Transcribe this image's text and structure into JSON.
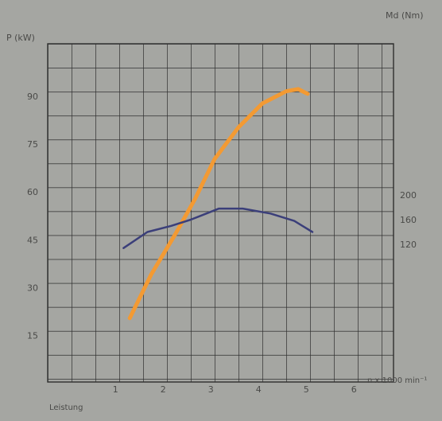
{
  "chart_data": {
    "type": "line",
    "ylabel": "P (kW)",
    "y2label": "Md (Nm)",
    "xlabel": "n x 1000 min⁻¹",
    "annotation": "Leistung",
    "xlim": [
      -0.42,
      6.83
    ],
    "xticks": [
      1,
      2,
      3,
      4,
      5,
      6
    ],
    "ylim": [
      0.7,
      106.7
    ],
    "yticks": [
      15,
      30,
      45,
      60,
      75,
      90
    ],
    "y2lim": [
      -102,
      446
    ],
    "y2ticks": [
      120,
      160,
      200
    ],
    "grid": true,
    "series": [
      {
        "name": "P",
        "color": "#f39a33",
        "x": [
          1.3,
          1.75,
          2.25,
          2.67,
          3.08,
          3.58,
          4.08,
          4.58,
          4.83,
          5.03
        ],
        "values": [
          20.7,
          34.4,
          46.9,
          58.1,
          70.6,
          80.5,
          88.0,
          91.8,
          92.5,
          91.0
        ]
      },
      {
        "name": "Md",
        "color": "#3b3f7a",
        "axis": "y2",
        "x": [
          1.17,
          1.67,
          2.17,
          2.58,
          3.17,
          3.67,
          4.25,
          4.75,
          5.13
        ],
        "values": [
          115,
          141,
          151,
          161,
          179,
          179,
          171,
          159,
          141
        ]
      }
    ]
  }
}
